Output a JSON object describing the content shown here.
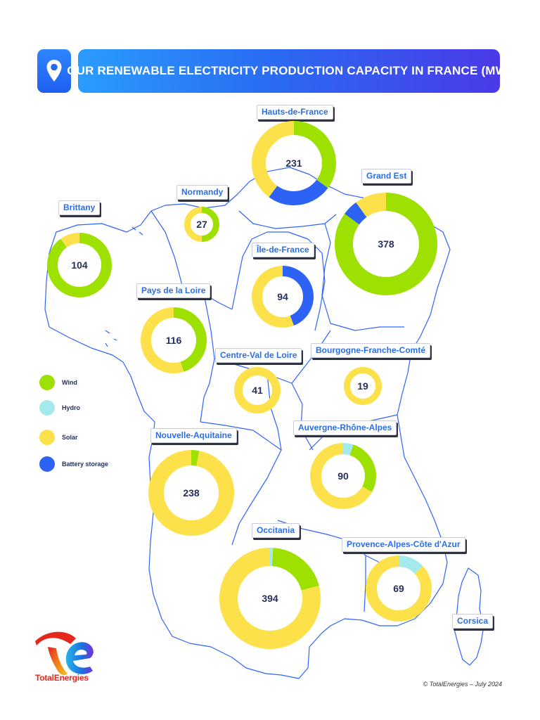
{
  "header": {
    "title": "OUR RENEWABLE ELECTRICITY PRODUCTION CAPACITY IN FRANCE (MW)",
    "icon": "location-pin-icon"
  },
  "colors": {
    "wind": "#9ee000",
    "hydro": "#a4e9ec",
    "solar": "#fde14a",
    "battery": "#2d63f4",
    "label_text": "#2a6ee8",
    "value_text": "#25305e"
  },
  "legend": [
    {
      "key": "wind",
      "label": "Wind"
    },
    {
      "key": "hydro",
      "label": "Hydro"
    },
    {
      "key": "solar",
      "label": "Solar"
    },
    {
      "key": "battery",
      "label": "Battery storage"
    }
  ],
  "regions": [
    {
      "name": "Hauts-de-France",
      "total": "231",
      "shares": {
        "wind": 0.35,
        "solar": 0.4,
        "battery": 0.25
      }
    },
    {
      "name": "Grand Est",
      "total": "378",
      "shares": {
        "wind": 0.85,
        "solar": 0.1,
        "battery": 0.05
      }
    },
    {
      "name": "Normandy",
      "total": "27",
      "shares": {
        "wind": 0.5,
        "solar": 0.5
      }
    },
    {
      "name": "Brittany",
      "total": "104",
      "shares": {
        "wind": 0.9,
        "solar": 0.1
      }
    },
    {
      "name": "Île-de-France",
      "total": "94",
      "shares": {
        "battery": 0.44,
        "solar": 0.56
      }
    },
    {
      "name": "Pays de la Loire",
      "total": "116",
      "shares": {
        "wind": 0.45,
        "solar": 0.55
      }
    },
    {
      "name": "Centre-Val de Loire",
      "total": "41",
      "shares": {
        "solar": 1.0
      }
    },
    {
      "name": "Bourgogne-Franche-Comté",
      "total": "19",
      "shares": {
        "solar": 1.0
      }
    },
    {
      "name": "Nouvelle-Aquitaine",
      "total": "238",
      "shares": {
        "wind": 0.03,
        "solar": 0.97
      }
    },
    {
      "name": "Auvergne-Rhône-Alpes",
      "total": "90",
      "shares": {
        "wind": 0.28,
        "solar": 0.67,
        "hydro": 0.05
      }
    },
    {
      "name": "Occitania",
      "total": "394",
      "shares": {
        "wind": 0.2,
        "solar": 0.79,
        "hydro": 0.01
      }
    },
    {
      "name": "Provence-Alpes-Côte d'Azur",
      "total": "69",
      "shares": {
        "solar": 0.87,
        "hydro": 0.13
      }
    },
    {
      "name": "Corsica",
      "total": ""
    }
  ],
  "brand": {
    "logo_text": "TotalEnergies",
    "copyright": "© TotalEnergies – July 2024"
  }
}
